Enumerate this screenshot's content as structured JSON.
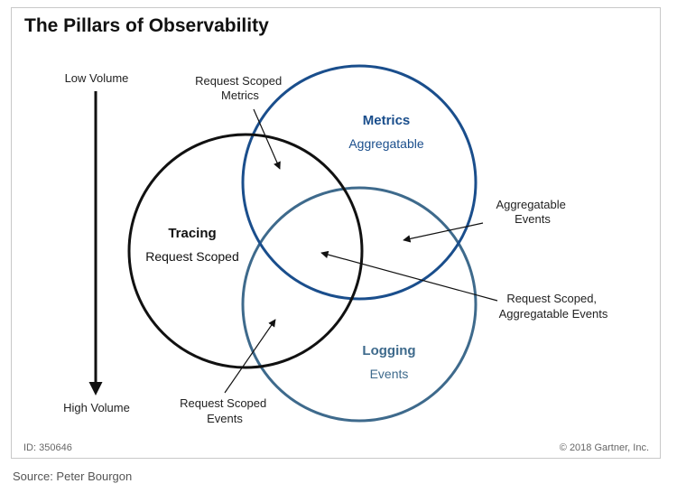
{
  "title": "The Pillars of Observability",
  "axis": {
    "top_label": "Low Volume",
    "bottom_label": "High Volume"
  },
  "circles": {
    "metrics": {
      "name": "Metrics",
      "desc": "Aggregatable",
      "color": "#1a4e8c"
    },
    "tracing": {
      "name": "Tracing",
      "desc": "Request Scoped",
      "color": "#111111"
    },
    "logging": {
      "name": "Logging",
      "desc": "Events",
      "color": "#3e6a8c"
    }
  },
  "callouts": {
    "request_scoped_metrics": [
      "Request Scoped",
      "Metrics"
    ],
    "aggregatable_events": [
      "Aggregatable",
      "Events"
    ],
    "request_scoped_aggregatable_events": [
      "Request Scoped,",
      "Aggregatable Events"
    ],
    "request_scoped_events": [
      "Request Scoped",
      "Events"
    ]
  },
  "footer": {
    "id": "ID: 350646",
    "copyright": "© 2018 Gartner, Inc."
  },
  "source": "Source: Peter Bourgon"
}
